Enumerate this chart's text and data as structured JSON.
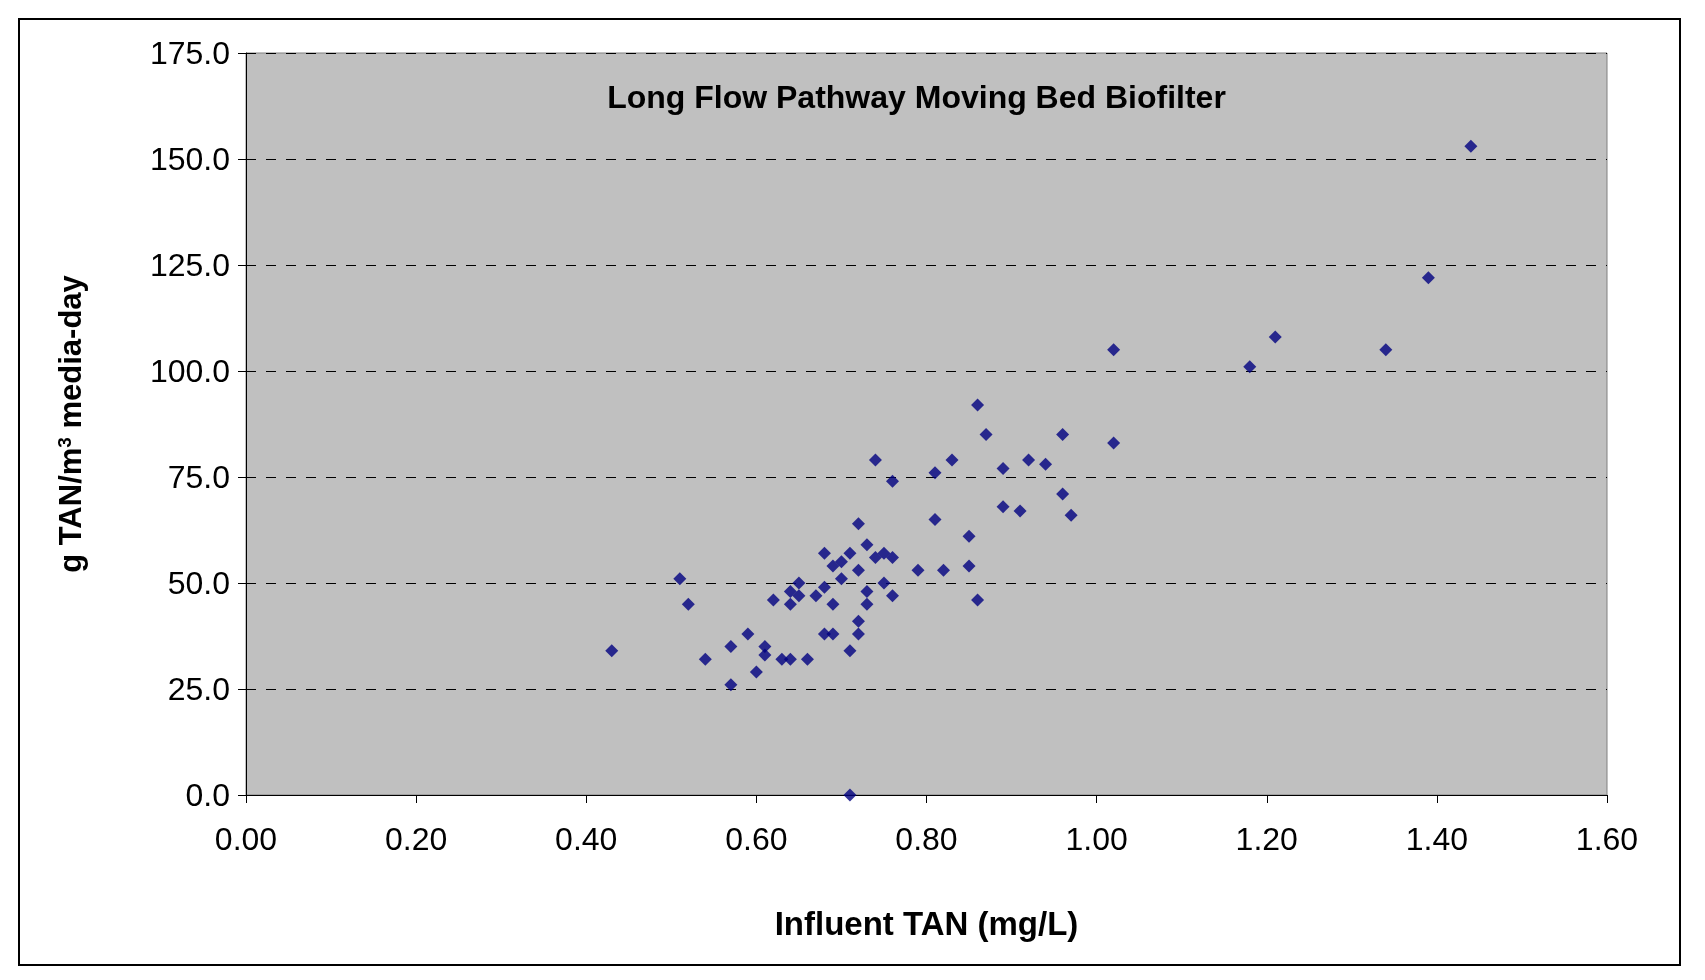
{
  "chart_data": {
    "type": "scatter",
    "title": "Long Flow Pathway Moving Bed Biofilter",
    "xlabel": "Influent TAN (mg/L)",
    "ylabel": "g TAN/m$^{3}$ media-day",
    "x": [
      0.43,
      0.51,
      0.52,
      0.54,
      0.57,
      0.57,
      0.59,
      0.6,
      0.61,
      0.61,
      0.62,
      0.63,
      0.64,
      0.64,
      0.64,
      0.65,
      0.65,
      0.66,
      0.67,
      0.68,
      0.68,
      0.68,
      0.69,
      0.69,
      0.69,
      0.7,
      0.7,
      0.71,
      0.71,
      0.71,
      0.72,
      0.72,
      0.72,
      0.72,
      0.73,
      0.73,
      0.73,
      0.74,
      0.74,
      0.75,
      0.75,
      0.76,
      0.76,
      0.76,
      0.79,
      0.81,
      0.81,
      0.82,
      0.83,
      0.85,
      0.85,
      0.86,
      0.86,
      0.87,
      0.89,
      0.89,
      0.91,
      0.92,
      0.94,
      0.96,
      0.96,
      0.97,
      1.02,
      1.02,
      1.18,
      1.21,
      1.34,
      1.39,
      1.44
    ],
    "series": [
      {
        "color": "#000080",
        "values": [
          34,
          51,
          45,
          32,
          35,
          26,
          38,
          29,
          35,
          33,
          46,
          32,
          32,
          48,
          45,
          50,
          47,
          32,
          47,
          57,
          38,
          49,
          38,
          45,
          54,
          51,
          55,
          34,
          57,
          0,
          64,
          53,
          41,
          38,
          59,
          48,
          45,
          79,
          56,
          57,
          50,
          74,
          56,
          47,
          53,
          76,
          65,
          53,
          79,
          61,
          54,
          92,
          46,
          85,
          77,
          68,
          67,
          79,
          78,
          85,
          71,
          66,
          105,
          83,
          101,
          108,
          105,
          122,
          153
        ]
      }
    ],
    "xlim": [
      0,
      1.6
    ],
    "xticks": [
      {
        "value": 0,
        "label": "0.00"
      },
      {
        "value": 0.2,
        "label": "0.20"
      },
      {
        "value": 0.4,
        "label": "0.40"
      },
      {
        "value": 0.6,
        "label": "0.60"
      },
      {
        "value": 0.8,
        "label": "0.80"
      },
      {
        "value": 1,
        "label": "1.00"
      },
      {
        "value": 1.2,
        "label": "1.20"
      },
      {
        "value": 1.4,
        "label": "1.40"
      },
      {
        "value": 1.6,
        "label": "1.60"
      }
    ],
    "ylim": [
      0,
      175
    ],
    "yticks": [
      {
        "value": 0,
        "label": "0.0"
      },
      {
        "value": 25,
        "label": "25.0"
      },
      {
        "value": 50,
        "label": "50.0"
      },
      {
        "value": 75,
        "label": "75.0"
      },
      {
        "value": 100,
        "label": "100.0"
      },
      {
        "value": 125,
        "label": "125.0"
      },
      {
        "value": 150,
        "label": "150.0"
      },
      {
        "value": 175,
        "label": "175.0"
      }
    ],
    "grid": "y",
    "marker": "diamond"
  }
}
